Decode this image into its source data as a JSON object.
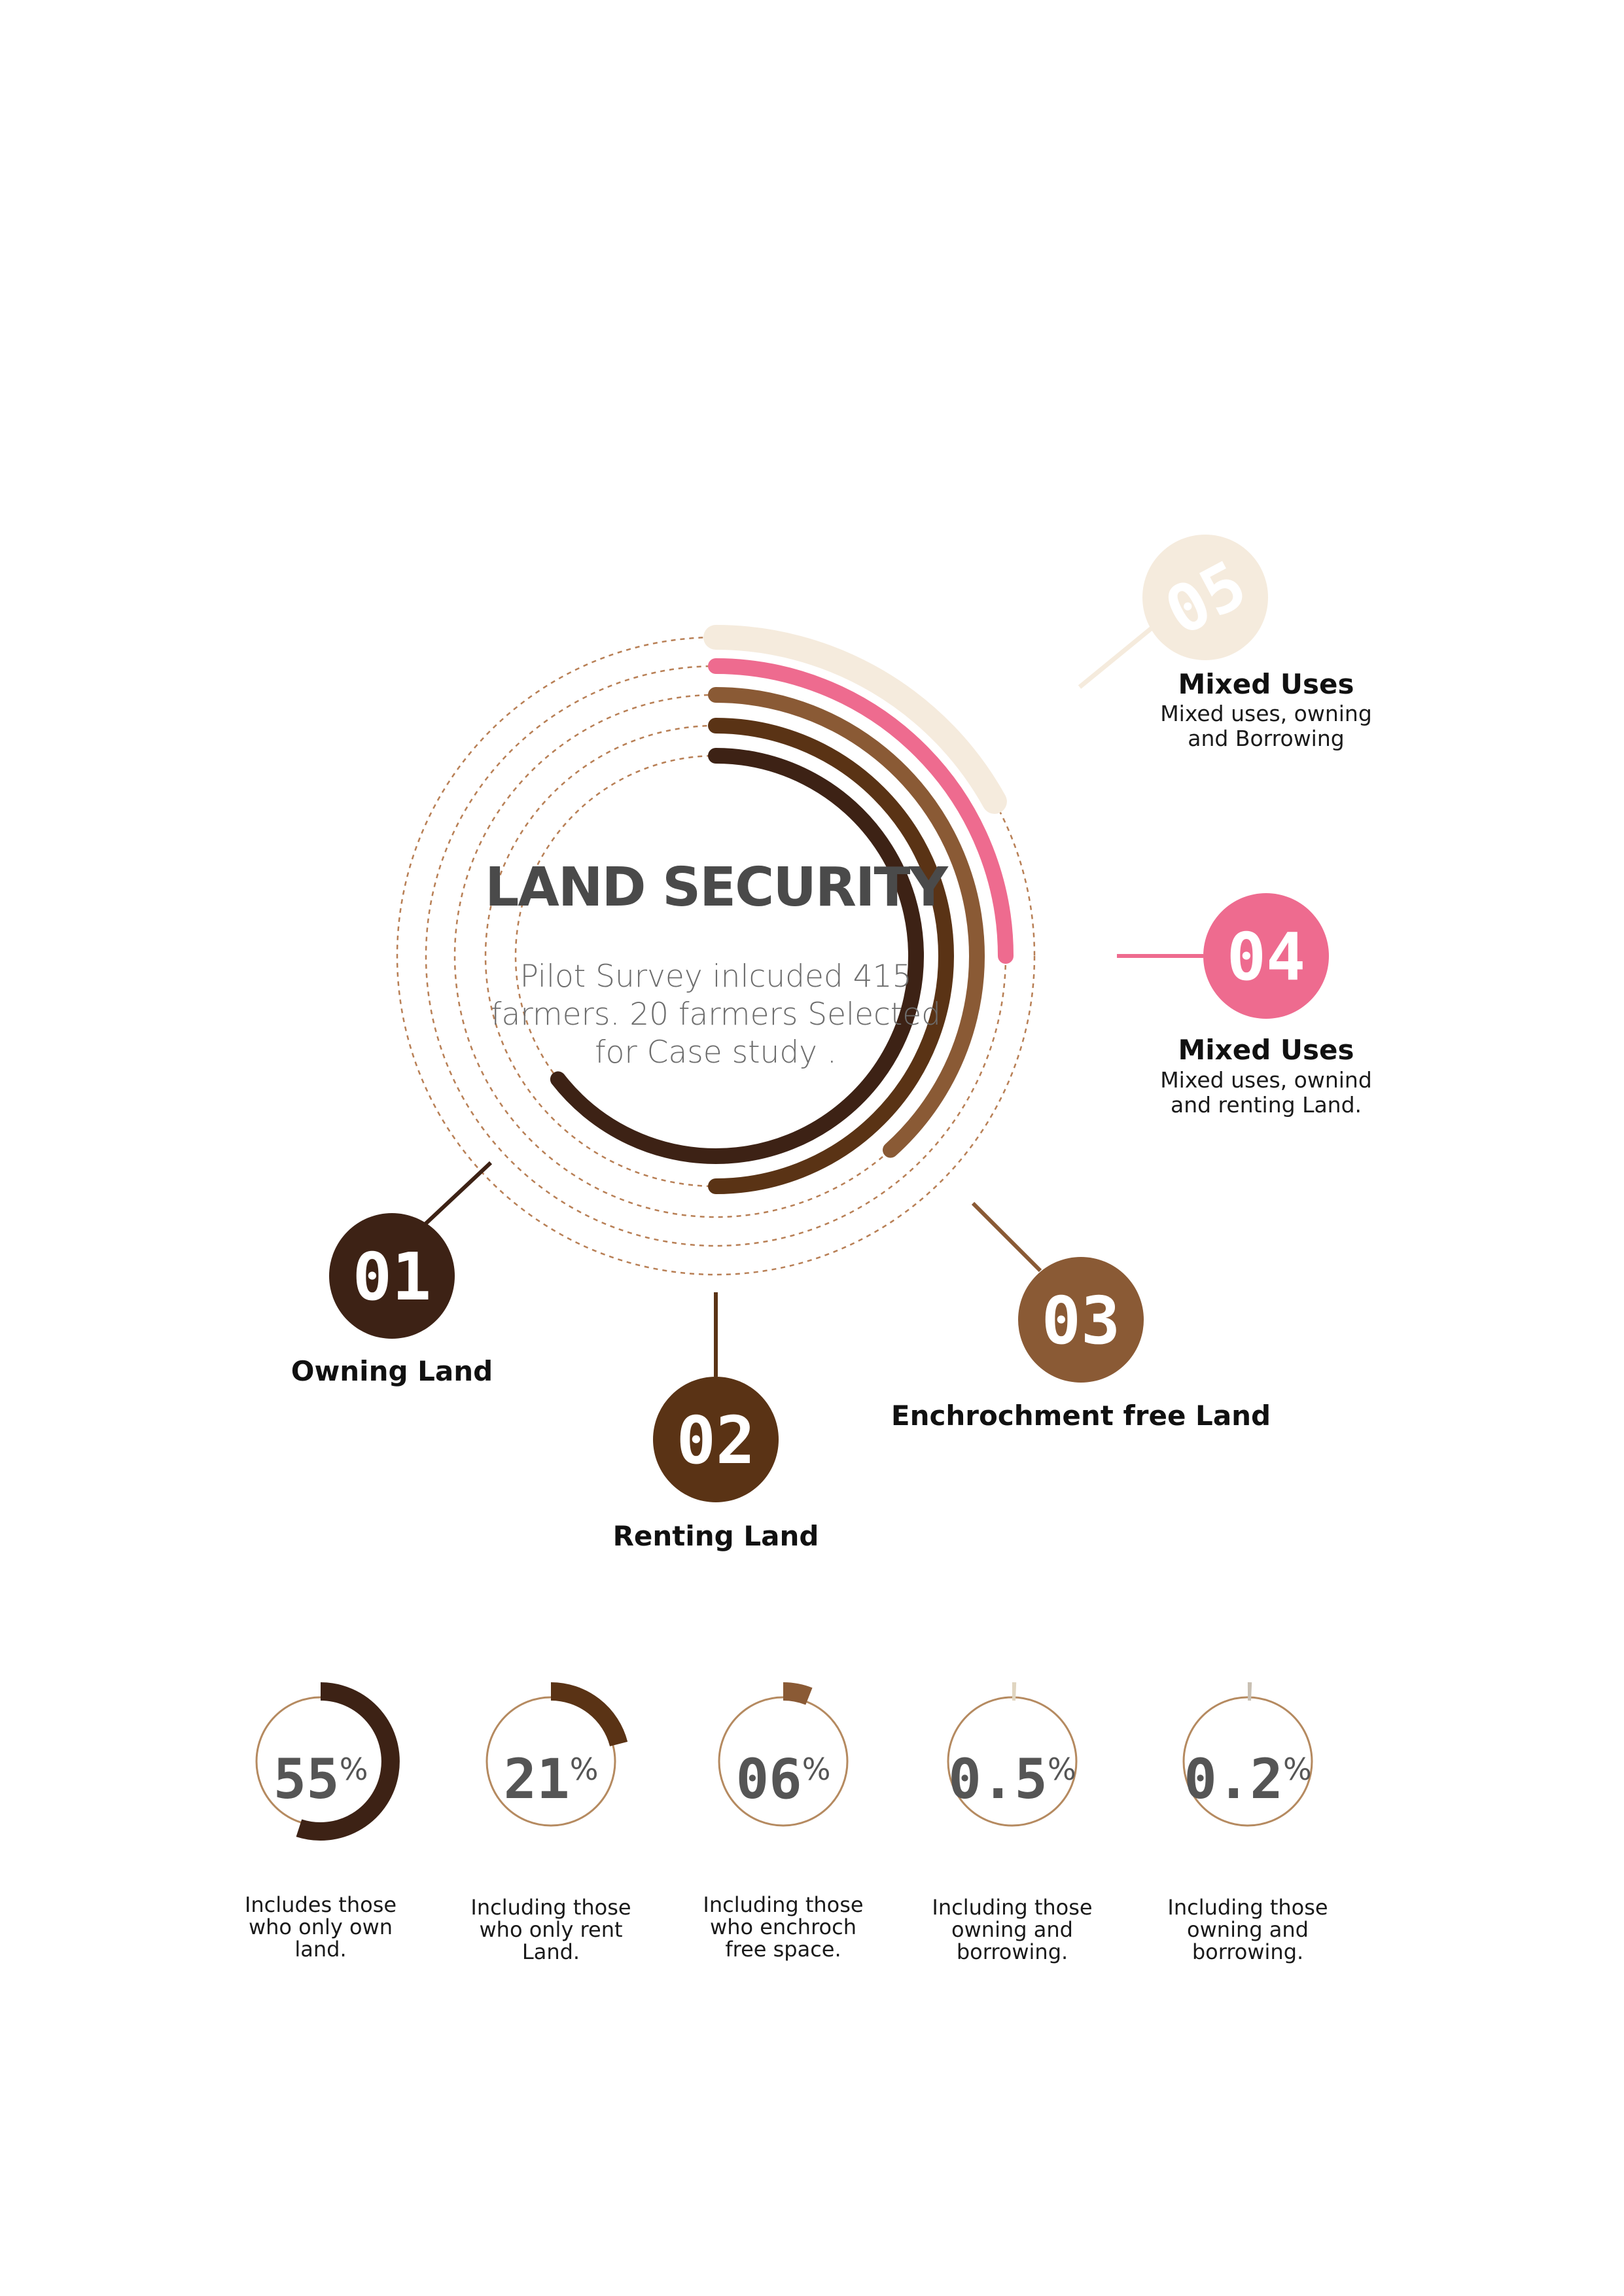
{
  "center": {
    "title": "LAND SECURITY",
    "description_lines": [
      "Pilot Survey inlcuded 415",
      "farmers. 20 farmers Selected",
      "for Case study ."
    ]
  },
  "colors": {
    "owning": "#3d2215",
    "renting": "#5a3315",
    "enchrochment": "#8a5a35",
    "mixed_renting": "#ee6b8f",
    "mixed_borrowing": "#f5ebdd",
    "dotted_guide": "#b87f55",
    "gauge_outline": "#b58a60",
    "gauge_text": "#555555"
  },
  "chart_data": {
    "type": "radial-bar",
    "categories": [
      {
        "number": "01",
        "title": "Owning Land",
        "description": [],
        "percent_text": "55",
        "percent_value": 55,
        "caption": [
          "Includes those",
          "who only own",
          "land."
        ],
        "color": "#3d2215"
      },
      {
        "number": "02",
        "title": "Renting Land",
        "description": [],
        "percent_text": "21",
        "percent_value": 21,
        "caption": [
          "Including those",
          "who only rent",
          "Land."
        ],
        "color": "#5a3315"
      },
      {
        "number": "03",
        "title": "Enchrochment free Land",
        "description": [],
        "percent_text": "06",
        "percent_value": 6,
        "caption": [
          "Including those",
          "who enchroch",
          "free space."
        ],
        "color": "#8a5a35"
      },
      {
        "number": "04",
        "title": "Mixed Uses",
        "description": [
          "Mixed uses, ownind",
          "and renting Land."
        ],
        "percent_text": "0.5",
        "percent_value": 0.5,
        "caption": [
          "Including those",
          "owning and",
          "borrowing."
        ],
        "color": "#ee6b8f"
      },
      {
        "number": "05",
        "title": "Mixed Uses",
        "description": [
          "Mixed uses, owning",
          "and Borrowing"
        ],
        "percent_text": "0.2",
        "percent_value": 0.2,
        "caption": [
          "Including those",
          "owning and",
          "borrowing."
        ],
        "color": "#f5ebdd"
      }
    ],
    "percent_symbol": "%"
  },
  "gauge_colors": [
    "#3d2215",
    "#5a3315",
    "#8a5a35",
    "#e0d5c0",
    "#c9c0b3"
  ]
}
